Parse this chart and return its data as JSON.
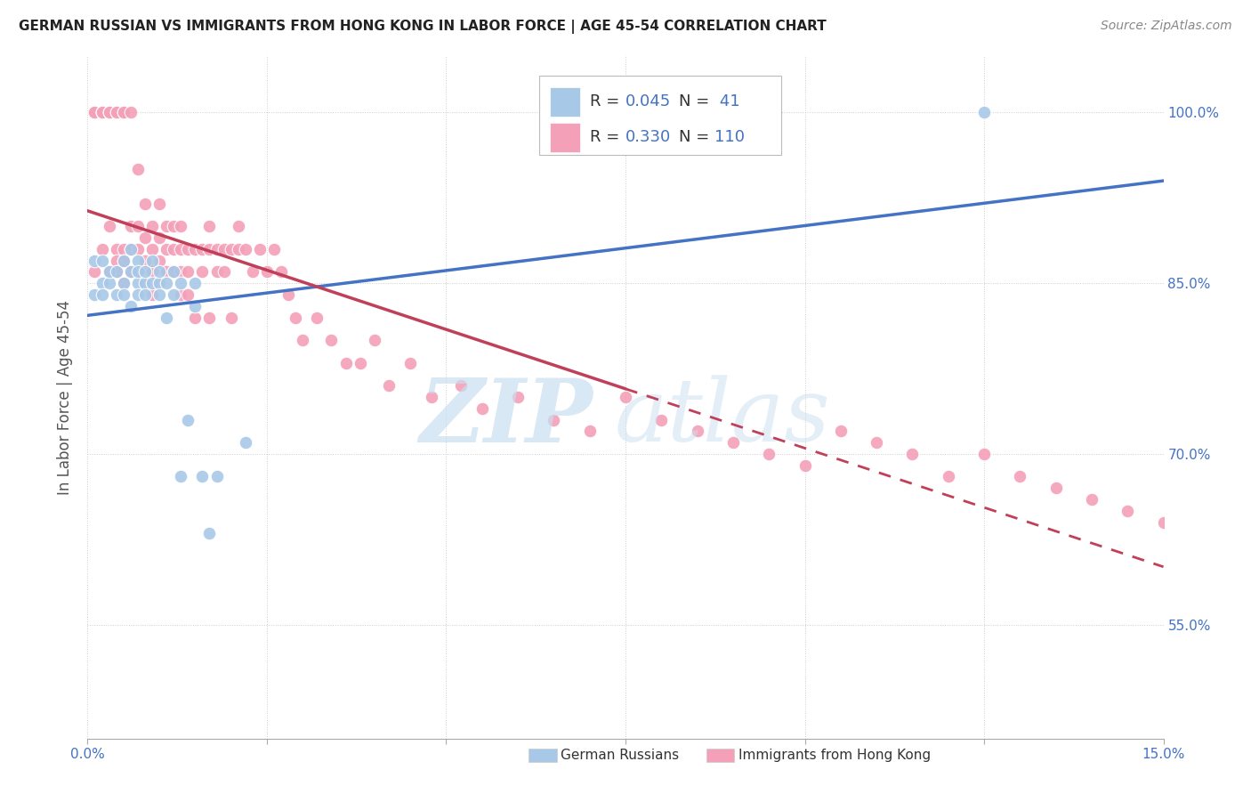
{
  "title": "GERMAN RUSSIAN VS IMMIGRANTS FROM HONG KONG IN LABOR FORCE | AGE 45-54 CORRELATION CHART",
  "source": "Source: ZipAtlas.com",
  "ylabel": "In Labor Force | Age 45-54",
  "xlim": [
    0.0,
    0.15
  ],
  "ylim": [
    0.45,
    1.05
  ],
  "xticks": [
    0.0,
    0.025,
    0.05,
    0.075,
    0.1,
    0.125,
    0.15
  ],
  "yticks": [
    0.55,
    0.7,
    0.85,
    1.0
  ],
  "yticklabels": [
    "55.0%",
    "70.0%",
    "85.0%",
    "100.0%"
  ],
  "blue_color": "#a8c8e8",
  "pink_color": "#f4a0b8",
  "blue_line_color": "#4472c4",
  "pink_line_color": "#c0405a",
  "blue_scatter_x": [
    0.001,
    0.001,
    0.002,
    0.002,
    0.002,
    0.003,
    0.003,
    0.004,
    0.004,
    0.005,
    0.005,
    0.005,
    0.006,
    0.006,
    0.006,
    0.007,
    0.007,
    0.007,
    0.007,
    0.008,
    0.008,
    0.008,
    0.009,
    0.009,
    0.01,
    0.01,
    0.01,
    0.011,
    0.011,
    0.012,
    0.012,
    0.013,
    0.013,
    0.014,
    0.015,
    0.015,
    0.016,
    0.017,
    0.018,
    0.022,
    0.125
  ],
  "blue_scatter_y": [
    0.84,
    0.87,
    0.85,
    0.87,
    0.84,
    0.85,
    0.86,
    0.84,
    0.86,
    0.85,
    0.87,
    0.84,
    0.86,
    0.88,
    0.83,
    0.85,
    0.87,
    0.84,
    0.86,
    0.85,
    0.84,
    0.86,
    0.85,
    0.87,
    0.85,
    0.84,
    0.86,
    0.82,
    0.85,
    0.86,
    0.84,
    0.68,
    0.85,
    0.73,
    0.83,
    0.85,
    0.68,
    0.63,
    0.68,
    0.71,
    1.0
  ],
  "pink_scatter_x": [
    0.001,
    0.001,
    0.001,
    0.001,
    0.002,
    0.002,
    0.002,
    0.002,
    0.002,
    0.003,
    0.003,
    0.003,
    0.003,
    0.003,
    0.004,
    0.004,
    0.004,
    0.004,
    0.004,
    0.005,
    0.005,
    0.005,
    0.005,
    0.005,
    0.006,
    0.006,
    0.006,
    0.006,
    0.007,
    0.007,
    0.007,
    0.007,
    0.008,
    0.008,
    0.008,
    0.008,
    0.009,
    0.009,
    0.009,
    0.009,
    0.01,
    0.01,
    0.01,
    0.01,
    0.011,
    0.011,
    0.011,
    0.012,
    0.012,
    0.012,
    0.013,
    0.013,
    0.013,
    0.013,
    0.014,
    0.014,
    0.014,
    0.015,
    0.015,
    0.016,
    0.016,
    0.017,
    0.017,
    0.017,
    0.018,
    0.018,
    0.019,
    0.019,
    0.02,
    0.02,
    0.021,
    0.021,
    0.022,
    0.023,
    0.024,
    0.025,
    0.026,
    0.027,
    0.028,
    0.029,
    0.03,
    0.032,
    0.034,
    0.036,
    0.038,
    0.04,
    0.042,
    0.045,
    0.048,
    0.052,
    0.055,
    0.06,
    0.065,
    0.07,
    0.075,
    0.08,
    0.085,
    0.09,
    0.095,
    0.1,
    0.105,
    0.11,
    0.115,
    0.12,
    0.125,
    0.13,
    0.135,
    0.14,
    0.145,
    0.15
  ],
  "pink_scatter_y": [
    1.0,
    1.0,
    1.0,
    0.86,
    1.0,
    1.0,
    1.0,
    1.0,
    0.88,
    1.0,
    1.0,
    1.0,
    0.86,
    0.9,
    1.0,
    1.0,
    0.88,
    0.87,
    0.86,
    1.0,
    1.0,
    0.88,
    0.87,
    0.85,
    1.0,
    0.9,
    0.88,
    0.86,
    0.95,
    0.9,
    0.88,
    0.86,
    0.92,
    0.89,
    0.87,
    0.85,
    0.9,
    0.88,
    0.86,
    0.84,
    0.92,
    0.89,
    0.87,
    0.85,
    0.9,
    0.88,
    0.86,
    0.9,
    0.88,
    0.86,
    0.9,
    0.88,
    0.86,
    0.84,
    0.88,
    0.86,
    0.84,
    0.88,
    0.82,
    0.88,
    0.86,
    0.9,
    0.88,
    0.82,
    0.88,
    0.86,
    0.88,
    0.86,
    0.88,
    0.82,
    0.9,
    0.88,
    0.88,
    0.86,
    0.88,
    0.86,
    0.88,
    0.86,
    0.84,
    0.82,
    0.8,
    0.82,
    0.8,
    0.78,
    0.78,
    0.8,
    0.76,
    0.78,
    0.75,
    0.76,
    0.74,
    0.75,
    0.73,
    0.72,
    0.75,
    0.73,
    0.72,
    0.71,
    0.7,
    0.69,
    0.72,
    0.71,
    0.7,
    0.68,
    0.7,
    0.68,
    0.67,
    0.66,
    0.65,
    0.64
  ]
}
